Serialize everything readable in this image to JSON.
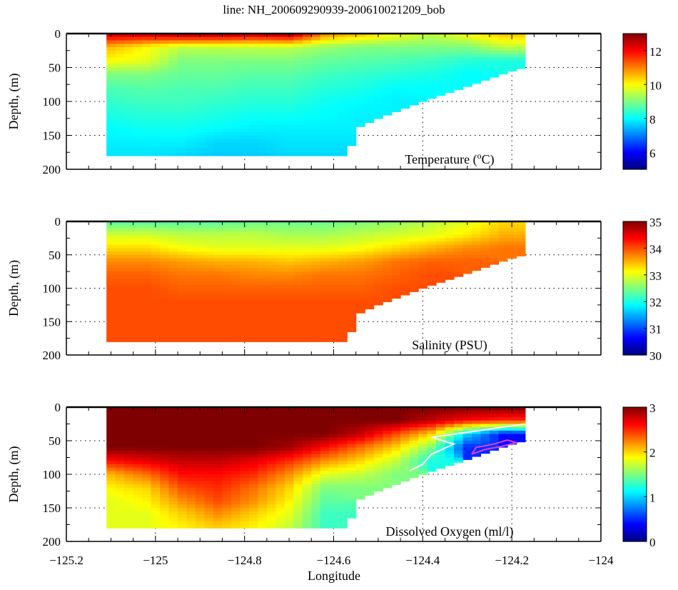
{
  "chart_data": {
    "title": "line: NH_200609290939-200610021209_bob",
    "xlabel": "Longitude",
    "xlim": [
      -125.2,
      -124
    ],
    "xticks": [
      -125.2,
      -125,
      -124.8,
      -124.6,
      -124.4,
      -124.2,
      -124
    ],
    "xtick_labels": [
      "−125.2",
      "−125",
      "−124.8",
      "−124.6",
      "−124.4",
      "−124.2",
      "−124"
    ],
    "grid": true,
    "colormap": "jet",
    "grid_lon": [
      -125.1,
      -125.02,
      -124.94,
      -124.86,
      -124.78,
      -124.7,
      -124.62,
      -124.54,
      -124.46,
      -124.38,
      -124.3,
      -124.22
    ],
    "grid_depth": [
      0,
      20,
      40,
      60,
      80,
      100,
      120,
      140,
      160,
      180
    ],
    "bottom_profile": {
      "lon": [
        -125.11,
        -124.57,
        -124.56,
        -124.55,
        -124.5,
        -124.4,
        -124.3,
        -124.2,
        -124.17
      ],
      "depth": [
        180,
        180,
        165,
        140,
        125,
        100,
        78,
        55,
        50
      ]
    },
    "panels": [
      {
        "type": "heatmap",
        "label": "Temperature (",
        "label_sup": "o",
        "label_end": "C)",
        "ylabel": "Depth, (m)",
        "ylim": [
          0,
          200
        ],
        "yticks": [
          0,
          50,
          100,
          150,
          200
        ],
        "clim": [
          5,
          13
        ],
        "cticks": [
          6,
          8,
          10,
          12
        ],
        "values": [
          [
            12.5,
            12.5,
            12.8,
            12.8,
            12.5,
            12.8,
            11,
            10.5,
            10,
            9.5,
            10,
            10.5
          ],
          [
            10.5,
            10,
            9.5,
            9.5,
            9.5,
            9.5,
            9.2,
            9,
            9,
            9,
            9,
            9.5
          ],
          [
            10,
            9.8,
            9,
            9,
            9,
            9,
            8.8,
            8.7,
            8.6,
            8.5,
            8.3,
            8.2
          ],
          [
            9,
            9,
            8.8,
            8.8,
            8.7,
            8.7,
            8.5,
            8.4,
            8.3,
            8.2,
            8,
            null
          ],
          [
            8.6,
            8.7,
            8.6,
            8.6,
            8.5,
            8.5,
            8.3,
            8.2,
            8,
            8,
            null,
            null
          ],
          [
            8.4,
            8.5,
            8.5,
            8.4,
            8.3,
            8.3,
            8.1,
            8,
            7.9,
            null,
            null,
            null
          ],
          [
            8.2,
            8.3,
            8.3,
            8.2,
            8.1,
            8.1,
            8,
            7.9,
            null,
            null,
            null,
            null
          ],
          [
            8,
            8.1,
            8.1,
            8,
            7.9,
            7.9,
            7.9,
            null,
            null,
            null,
            null,
            null
          ],
          [
            7.9,
            7.9,
            7.9,
            7.7,
            7.7,
            7.8,
            7.8,
            null,
            null,
            null,
            null,
            null
          ],
          [
            7.8,
            7.8,
            7.7,
            7.6,
            7.6,
            7.7,
            7.7,
            null,
            null,
            null,
            null,
            null
          ]
        ]
      },
      {
        "type": "heatmap",
        "label": "Salinity (PSU)",
        "ylabel": "Depth, (m)",
        "ylim": [
          0,
          200
        ],
        "yticks": [
          0,
          50,
          100,
          150,
          200
        ],
        "clim": [
          30,
          35
        ],
        "cticks": [
          30,
          31,
          32,
          33,
          34,
          35
        ],
        "values": [
          [
            32.3,
            32.3,
            32.3,
            32.3,
            32.4,
            32.4,
            32.4,
            32.5,
            32.6,
            32.8,
            33,
            33.3
          ],
          [
            32.9,
            32.9,
            32.8,
            32.8,
            32.8,
            32.7,
            32.7,
            32.8,
            32.9,
            33,
            33.2,
            33.5
          ],
          [
            33.3,
            33.3,
            33.1,
            33,
            33,
            33,
            33,
            33.1,
            33.3,
            33.5,
            33.7,
            33.8
          ],
          [
            33.7,
            33.7,
            33.6,
            33.5,
            33.5,
            33.4,
            33.5,
            33.6,
            33.8,
            33.9,
            33.9,
            null
          ],
          [
            33.9,
            33.9,
            33.8,
            33.8,
            33.7,
            33.7,
            33.8,
            33.8,
            33.9,
            34,
            null,
            null
          ],
          [
            34,
            34,
            33.9,
            33.9,
            33.9,
            33.9,
            33.9,
            33.9,
            34,
            null,
            null,
            null
          ],
          [
            34,
            34,
            34,
            34,
            34,
            34,
            34,
            34,
            null,
            null,
            null,
            null
          ],
          [
            34,
            34,
            34,
            34,
            34,
            34,
            34,
            null,
            null,
            null,
            null,
            null
          ],
          [
            34,
            34,
            34,
            34,
            34,
            34,
            34,
            null,
            null,
            null,
            null,
            null
          ],
          [
            34,
            34,
            34,
            34,
            34,
            34,
            34,
            null,
            null,
            null,
            null,
            null
          ]
        ]
      },
      {
        "type": "heatmap",
        "label": "Dissolved Oxygen (ml/l)",
        "ylabel": "Depth, (m)",
        "ylim": [
          0,
          200
        ],
        "yticks": [
          0,
          50,
          100,
          150,
          200
        ],
        "clim": [
          0,
          3
        ],
        "cticks": [
          0,
          1,
          2,
          3
        ],
        "values": [
          [
            3,
            3,
            3,
            3,
            3,
            3,
            3,
            3,
            3,
            3,
            3,
            3
          ],
          [
            3,
            3,
            3,
            3,
            3,
            3,
            3,
            3,
            3,
            2.8,
            2.6,
            2.5
          ],
          [
            3,
            3,
            3,
            3,
            3,
            3,
            3,
            2.8,
            2.4,
            2,
            1,
            0.4
          ],
          [
            3,
            3,
            3,
            3,
            3,
            2.9,
            2.6,
            2.3,
            2,
            1.5,
            0.5,
            null
          ],
          [
            2.6,
            2.7,
            2.8,
            2.8,
            2.7,
            2.5,
            2.2,
            2,
            1.7,
            1.2,
            null,
            null
          ],
          [
            2.1,
            2.3,
            2.6,
            2.6,
            2.5,
            2.2,
            1.8,
            1.7,
            1.5,
            null,
            null,
            null
          ],
          [
            1.9,
            2,
            2.4,
            2.5,
            2.3,
            2,
            1.5,
            1.5,
            null,
            null,
            null,
            null
          ],
          [
            1.8,
            1.9,
            2.2,
            2.4,
            2.2,
            1.9,
            1.4,
            null,
            null,
            null,
            null,
            null
          ],
          [
            1.8,
            1.8,
            2,
            2.2,
            2,
            1.8,
            1.3,
            null,
            null,
            null,
            null,
            null
          ],
          [
            1.8,
            1.8,
            1.9,
            2,
            1.9,
            1.7,
            1.3,
            null,
            null,
            null,
            null,
            null
          ]
        ],
        "contours": [
          {
            "color": "#ffffff",
            "lon": [
              -124.17,
              -124.38,
              -124.33,
              -124.38,
              -124.4,
              -124.43
            ],
            "depth": [
              25,
              45,
              55,
              70,
              85,
              95
            ]
          },
          {
            "color": "#e040e0",
            "lon": [
              -124.29,
              -124.28,
              -124.24,
              -124.21,
              -124.19,
              -124.22,
              -124.26,
              -124.29
            ],
            "depth": [
              70,
              60,
              55,
              49,
              53,
              58,
              63,
              70
            ]
          }
        ]
      }
    ]
  }
}
